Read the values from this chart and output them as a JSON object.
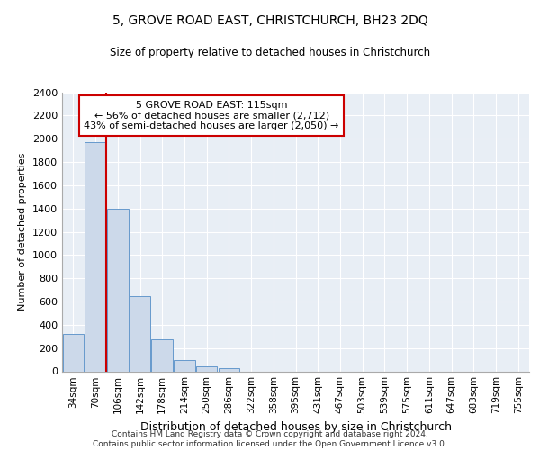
{
  "title": "5, GROVE ROAD EAST, CHRISTCHURCH, BH23 2DQ",
  "subtitle": "Size of property relative to detached houses in Christchurch",
  "xlabel": "Distribution of detached houses by size in Christchurch",
  "ylabel": "Number of detached properties",
  "footer_line1": "Contains HM Land Registry data © Crown copyright and database right 2024.",
  "footer_line2": "Contains public sector information licensed under the Open Government Licence v3.0.",
  "bar_labels": [
    "34sqm",
    "70sqm",
    "106sqm",
    "142sqm",
    "178sqm",
    "214sqm",
    "250sqm",
    "286sqm",
    "322sqm",
    "358sqm",
    "395sqm",
    "431sqm",
    "467sqm",
    "503sqm",
    "539sqm",
    "575sqm",
    "611sqm",
    "647sqm",
    "683sqm",
    "719sqm",
    "755sqm"
  ],
  "bar_values": [
    320,
    1970,
    1400,
    650,
    275,
    100,
    45,
    30,
    0,
    0,
    0,
    0,
    0,
    0,
    0,
    0,
    0,
    0,
    0,
    0,
    0
  ],
  "bar_color": "#ccd9ea",
  "bar_edge_color": "#6699cc",
  "ylim": [
    0,
    2400
  ],
  "yticks": [
    0,
    200,
    400,
    600,
    800,
    1000,
    1200,
    1400,
    1600,
    1800,
    2000,
    2200,
    2400
  ],
  "property_line_x": 1.5,
  "property_line_color": "#cc0000",
  "annotation_line1": "5 GROVE ROAD EAST: 115sqm",
  "annotation_line2": "← 56% of detached houses are smaller (2,712)",
  "annotation_line3": "43% of semi-detached houses are larger (2,050) →",
  "annotation_box_color": "#ffffff",
  "annotation_box_edge": "#cc0000",
  "bg_color": "#e8eef5",
  "grid_color": "#ffffff",
  "fig_bg": "#ffffff"
}
